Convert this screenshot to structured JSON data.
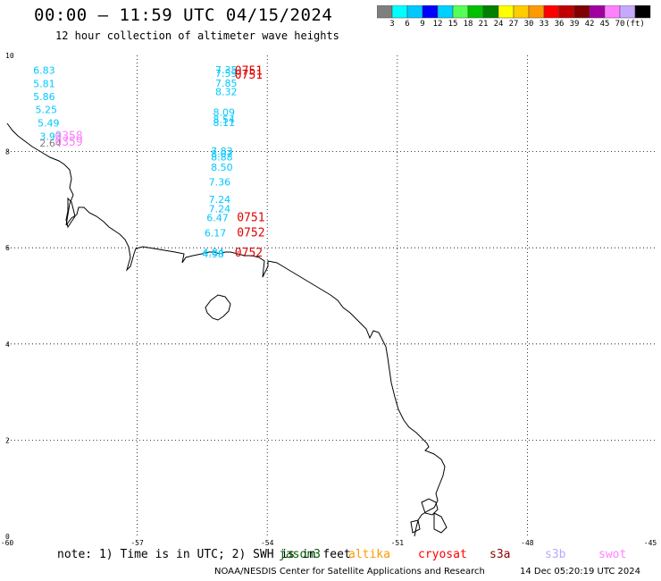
{
  "header": {
    "title": "00:00 – 11:59 UTC 04/15/2024",
    "subtitle": "12 hour collection of altimeter wave heights"
  },
  "colorbar": {
    "colors": [
      "#7f7f7f",
      "#00ffff",
      "#00c8ff",
      "#0000ff",
      "#00d0ff",
      "#55ff55",
      "#00c000",
      "#008000",
      "#ffff00",
      "#ffcc00",
      "#ff9900",
      "#ff0000",
      "#c00000",
      "#800000",
      "#a000a0",
      "#ff80ff",
      "#c8a8ff",
      "#000000"
    ],
    "labels": [
      "3",
      "6",
      "9",
      "12",
      "15",
      "18",
      "21",
      "24",
      "27",
      "30",
      "33",
      "36",
      "39",
      "42",
      "45",
      "70",
      "(ft)"
    ]
  },
  "axes": {
    "x_ticks": [
      "-60",
      "-57",
      "-54",
      "-51",
      "-48",
      "-45"
    ],
    "y_ticks": [
      "10",
      "8",
      "6",
      "4",
      "2",
      "0"
    ]
  },
  "observations": {
    "wave_heights": [
      {
        "text": "6.83",
        "lon": -59.4,
        "lat": 9.62,
        "color": "#00c8ff"
      },
      {
        "text": "5.81",
        "lon": -59.4,
        "lat": 9.34,
        "color": "#00c8ff"
      },
      {
        "text": "5.86",
        "lon": -59.4,
        "lat": 9.07,
        "color": "#00c8ff"
      },
      {
        "text": "5.25",
        "lon": -59.35,
        "lat": 8.8,
        "color": "#00c8ff"
      },
      {
        "text": "5.49",
        "lon": -59.3,
        "lat": 8.52,
        "color": "#00c8ff"
      },
      {
        "text": "3.93",
        "lon": -59.25,
        "lat": 8.24,
        "color": "#00c8ff"
      },
      {
        "text": "2.64",
        "lon": -59.25,
        "lat": 8.1,
        "color": "#7f7f7f"
      },
      {
        "text": "7.35",
        "lon": -55.2,
        "lat": 9.63,
        "color": "#00c8ff"
      },
      {
        "text": "7.59",
        "lon": -55.2,
        "lat": 9.55,
        "color": "#00c8ff"
      },
      {
        "text": "7.85",
        "lon": -55.2,
        "lat": 9.35,
        "color": "#00c8ff"
      },
      {
        "text": "8.32",
        "lon": -55.2,
        "lat": 9.17,
        "color": "#00c8ff"
      },
      {
        "text": "8.09",
        "lon": -55.25,
        "lat": 8.75,
        "color": "#00c8ff"
      },
      {
        "text": "8.54",
        "lon": -55.25,
        "lat": 8.6,
        "color": "#00c8ff"
      },
      {
        "text": "8.11",
        "lon": -55.25,
        "lat": 8.53,
        "color": "#00c8ff"
      },
      {
        "text": "7.83",
        "lon": -55.3,
        "lat": 7.94,
        "color": "#00c8ff"
      },
      {
        "text": "8.07",
        "lon": -55.3,
        "lat": 7.88,
        "color": "#00c8ff"
      },
      {
        "text": "8.88",
        "lon": -55.3,
        "lat": 7.82,
        "color": "#00c8ff"
      },
      {
        "text": "8.50",
        "lon": -55.3,
        "lat": 7.6,
        "color": "#00c8ff"
      },
      {
        "text": "7.36",
        "lon": -55.35,
        "lat": 7.3,
        "color": "#00c8ff"
      },
      {
        "text": "7.24",
        "lon": -55.35,
        "lat": 6.93,
        "color": "#00c8ff"
      },
      {
        "text": "7.24",
        "lon": -55.35,
        "lat": 6.74,
        "color": "#00c8ff"
      },
      {
        "text": "6.47",
        "lon": -55.4,
        "lat": 6.55,
        "color": "#00c8ff"
      },
      {
        "text": "6.17",
        "lon": -55.45,
        "lat": 6.24,
        "color": "#00c8ff"
      },
      {
        "text": "4.84",
        "lon": -55.5,
        "lat": 5.84,
        "color": "#00c8ff"
      },
      {
        "text": "4.98",
        "lon": -55.5,
        "lat": 5.8,
        "color": "#00c8ff"
      }
    ],
    "pass_times": [
      {
        "text": "0751",
        "lon": -54.75,
        "lat": 9.6,
        "color": "#e00000"
      },
      {
        "text": "0751",
        "lon": -54.75,
        "lat": 9.52,
        "color": "#e00000"
      },
      {
        "text": "0358",
        "lon": -58.9,
        "lat": 8.24,
        "color": "#ff80ff"
      },
      {
        "text": "0359",
        "lon": -58.9,
        "lat": 8.12,
        "color": "#ff80ff"
      },
      {
        "text": "0751",
        "lon": -54.7,
        "lat": 6.55,
        "color": "#e00000"
      },
      {
        "text": "0752",
        "lon": -54.7,
        "lat": 6.24,
        "color": "#e00000"
      },
      {
        "text": "0752",
        "lon": -54.75,
        "lat": 5.82,
        "color": "#e00000"
      }
    ]
  },
  "footer": {
    "note": "note: 1) Time is in UTC; 2) SWH is in feet",
    "satellites": [
      {
        "name": "jason3",
        "color": "#006400"
      },
      {
        "name": "altika",
        "color": "#ff9900"
      },
      {
        "name": "cryosat",
        "color": "#ff0000"
      },
      {
        "name": "s3a",
        "color": "#8b0000"
      },
      {
        "name": "s3b",
        "color": "#b8a8ff"
      },
      {
        "name": "swot",
        "color": "#ff80ff"
      }
    ],
    "credit": "NOAA/NESDIS Center for Satellite Applications and Research",
    "timestamp": "14 Dec 05:20:19 UTC 2024"
  },
  "map_extent": {
    "lon": [
      -60,
      -45
    ],
    "lat": [
      0,
      10
    ]
  }
}
